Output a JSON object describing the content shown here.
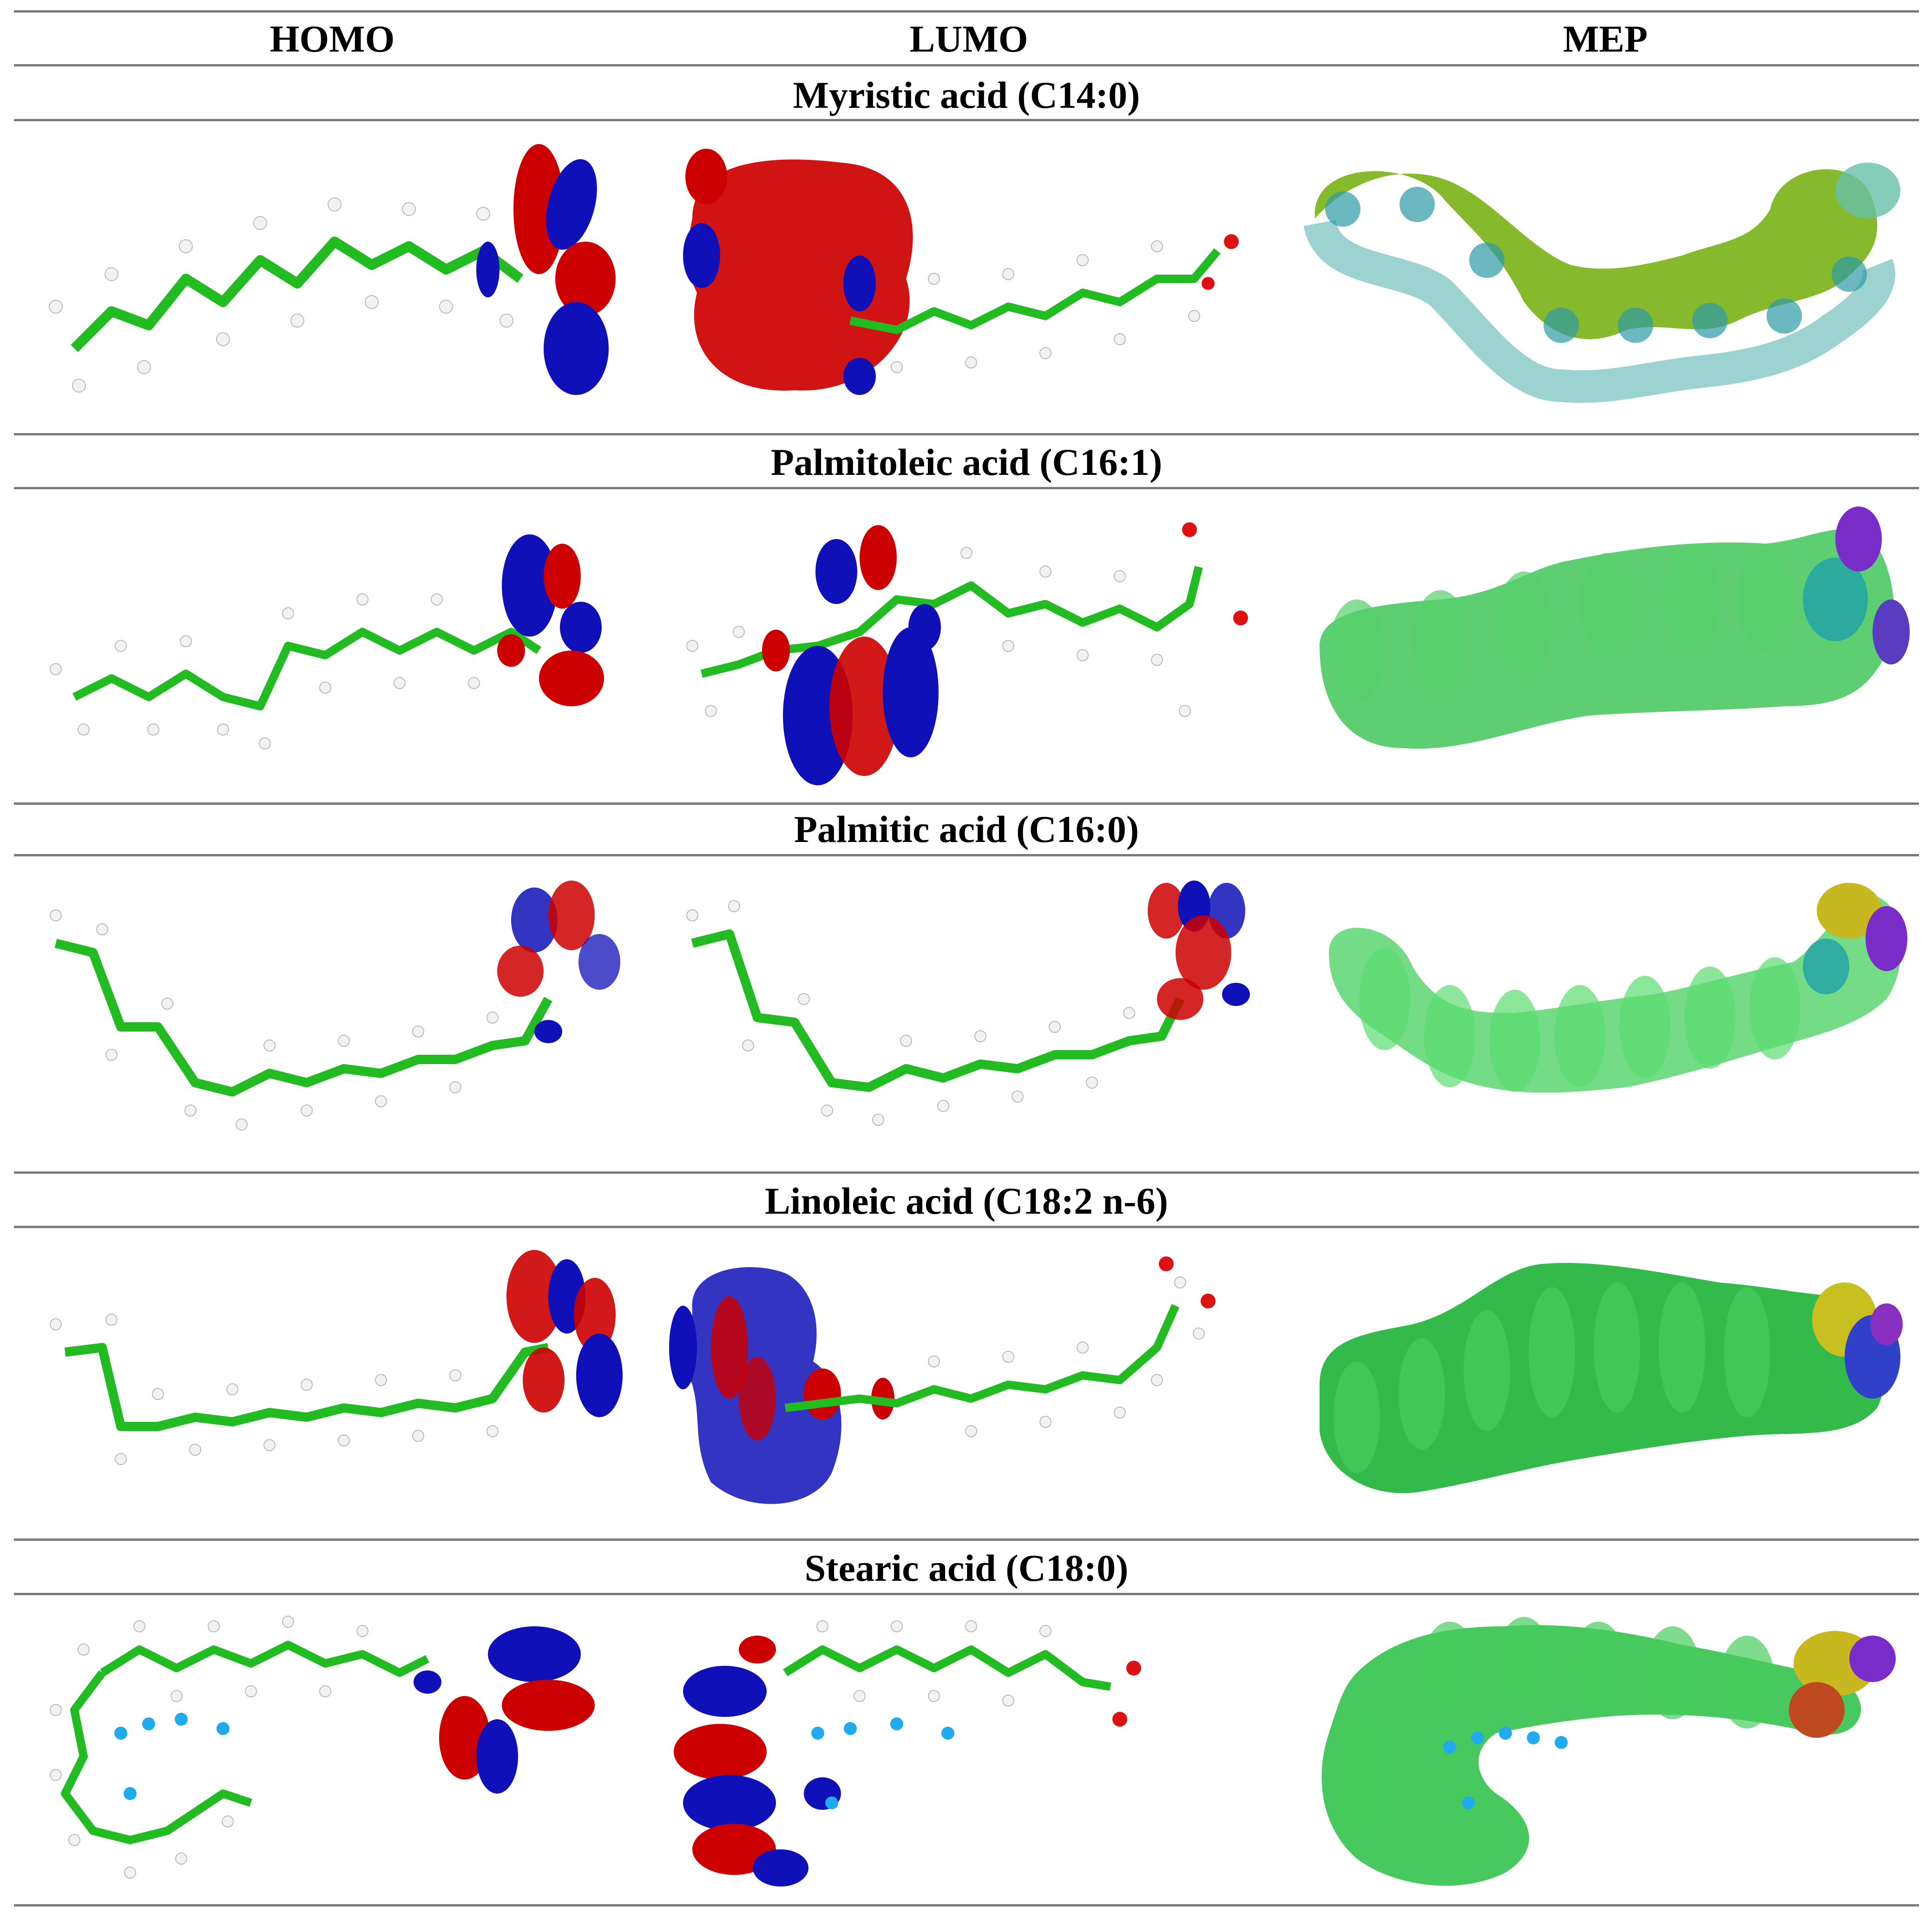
{
  "columns": [
    "HOMO",
    "LUMO",
    "MEP"
  ],
  "rows": [
    {
      "name": "Myristic acid (C14:0)"
    },
    {
      "name": "Palmitoleic acid (C16:1)"
    },
    {
      "name": "Palmitic acid (C16:0)"
    },
    {
      "name": "Linoleic acid (C18:2 n-6)"
    },
    {
      "name": "Stearic acid (C18:0)"
    }
  ],
  "colors": {
    "bond": "#22bb22",
    "hydrogen": "#f2f2f2",
    "oxygen": "#dd1111",
    "orbital_positive": "#cc0000",
    "orbital_negative": "#1010b8",
    "mep_surface": "#2fc24a",
    "water": "#22aaee"
  }
}
